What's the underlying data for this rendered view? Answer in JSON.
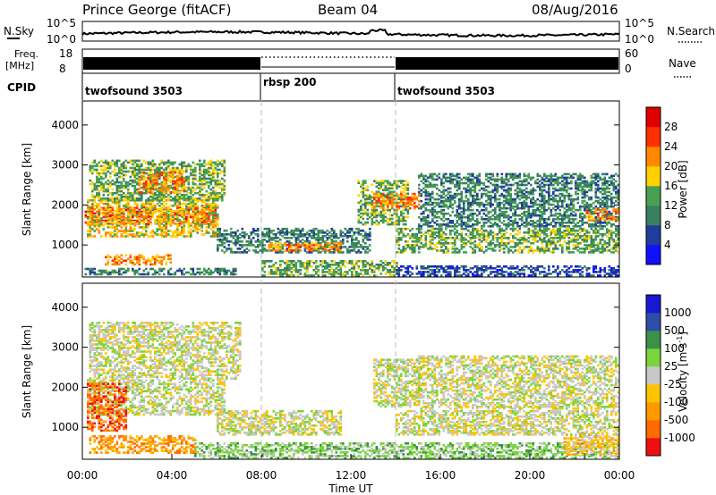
{
  "header": {
    "station": "Prince George (fitACF)",
    "beam": "Beam 04",
    "date": "08/Aug/2016"
  },
  "top_panels": {
    "nsky_label": "N.Sky",
    "nsky_ticks": [
      "10^5",
      "10^0"
    ],
    "nsearch_label": "N.Search",
    "nsearch_ticks": [
      "10^5",
      "10^0"
    ],
    "freq_label": "Freq.",
    "freq_unit": "[MHz]",
    "freq_ticks": [
      "18",
      "8"
    ],
    "nave_label": "Nave",
    "nave_ticks": [
      "60",
      "0"
    ],
    "cpid_label": "CPID",
    "cpid_segments": [
      {
        "label": "twofsound 3503",
        "start_hour": 0,
        "end_hour": 8
      },
      {
        "label": "rbsp 200",
        "start_hour": 8,
        "end_hour": 14
      },
      {
        "label": "twofsound 3503",
        "start_hour": 14,
        "end_hour": 24
      }
    ]
  },
  "chart_data": [
    {
      "type": "heatmap",
      "name": "power",
      "ylabel": "Slant Range [km]",
      "ylim": [
        200,
        4600
      ],
      "yticks": [
        "1000",
        "2000",
        "3000",
        "4000"
      ],
      "ytick_values": [
        1000,
        2000,
        3000,
        4000
      ],
      "xlim": [
        0,
        24
      ],
      "colorbar_label": "Power [dB]",
      "colorbar_ticks": [
        "4",
        "8",
        "12",
        "16",
        "20",
        "24",
        "28"
      ],
      "colorbar_colors": [
        "#1010ff",
        "#203c9c",
        "#3a8060",
        "#4aa050",
        "#ffd000",
        "#ff8800",
        "#ff3000",
        "#e00000"
      ],
      "regions": [
        {
          "t0": 0.1,
          "t1": 5.9,
          "r0": 1500,
          "r1": 1950,
          "level": 6
        },
        {
          "t0": 0.2,
          "t1": 6.0,
          "r0": 1200,
          "r1": 2150,
          "level": 4
        },
        {
          "t0": 0.3,
          "t1": 6.3,
          "r0": 2100,
          "r1": 3100,
          "level": 3
        },
        {
          "t0": 2.5,
          "t1": 4.5,
          "r0": 2300,
          "r1": 2800,
          "level": 5
        },
        {
          "t0": 1.0,
          "t1": 4.0,
          "r0": 500,
          "r1": 750,
          "level": 5
        },
        {
          "t0": 0.1,
          "t1": 6.8,
          "r0": 250,
          "r1": 420,
          "level": 2
        },
        {
          "t0": 6.0,
          "t1": 12.8,
          "r0": 800,
          "r1": 1400,
          "level": 2
        },
        {
          "t0": 8.3,
          "t1": 11.5,
          "r0": 850,
          "r1": 1050,
          "level": 5
        },
        {
          "t0": 8.0,
          "t1": 14.0,
          "r0": 220,
          "r1": 600,
          "level": 3
        },
        {
          "t0": 12.3,
          "t1": 14.5,
          "r0": 1500,
          "r1": 2600,
          "level": 3
        },
        {
          "t0": 13.0,
          "t1": 15.0,
          "r0": 1900,
          "r1": 2300,
          "level": 5
        },
        {
          "t0": 14.0,
          "t1": 24.0,
          "r0": 800,
          "r1": 1400,
          "level": 3
        },
        {
          "t0": 15.0,
          "t1": 24.0,
          "r0": 1450,
          "r1": 2800,
          "level": 2
        },
        {
          "t0": 22.5,
          "t1": 24.0,
          "r0": 1600,
          "r1": 1900,
          "level": 5
        },
        {
          "t0": 14.0,
          "t1": 24.0,
          "r0": 220,
          "r1": 450,
          "level": 1
        }
      ]
    },
    {
      "type": "heatmap",
      "name": "velocity",
      "ylabel": "Slant Range [km]",
      "ylim": [
        200,
        4600
      ],
      "yticks": [
        "1000",
        "2000",
        "3000",
        "4000"
      ],
      "ytick_values": [
        1000,
        2000,
        3000,
        4000
      ],
      "xlim": [
        0,
        24
      ],
      "xticks": [
        "00:00",
        "04:00",
        "08:00",
        "12:00",
        "16:00",
        "20:00",
        "00:00"
      ],
      "xtick_hours": [
        0,
        4,
        8,
        12,
        16,
        20,
        24
      ],
      "xlabel": "Time UT",
      "colorbar_label": "Velocity [m s^-1]",
      "colorbar_ticks": [
        "-1000",
        "-500",
        "-100",
        "-25",
        "25",
        "100",
        "500",
        "1000"
      ],
      "colorbar_colors": [
        "#ee1010",
        "#ff6a00",
        "#ff9900",
        "#ffc400",
        "#c8c8c8",
        "#7ad43c",
        "#3c9048",
        "#2e4ea8",
        "#1818d0"
      ],
      "regions": [
        {
          "t0": 0.2,
          "t1": 6.3,
          "r0": 1300,
          "r1": 2200,
          "level": 4
        },
        {
          "t0": 0.2,
          "t1": 2.0,
          "r0": 900,
          "r1": 2100,
          "level": 1
        },
        {
          "t0": 0.3,
          "t1": 5.0,
          "r0": 350,
          "r1": 800,
          "level": 2
        },
        {
          "t0": 0.3,
          "t1": 7.0,
          "r0": 2200,
          "r1": 3600,
          "level": 4
        },
        {
          "t0": 6.0,
          "t1": 11.5,
          "r0": 800,
          "r1": 1400,
          "level": 4
        },
        {
          "t0": 5.0,
          "t1": 24.0,
          "r0": 220,
          "r1": 600,
          "level": 5
        },
        {
          "t0": 13.0,
          "t1": 15.0,
          "r0": 1500,
          "r1": 2700,
          "level": 4
        },
        {
          "t0": 14.0,
          "t1": 24.0,
          "r0": 800,
          "r1": 1400,
          "level": 4
        },
        {
          "t0": 15.0,
          "t1": 24.0,
          "r0": 1450,
          "r1": 2800,
          "level": 4
        },
        {
          "t0": 21.5,
          "t1": 24.0,
          "r0": 300,
          "r1": 800,
          "level": 3
        }
      ]
    }
  ]
}
